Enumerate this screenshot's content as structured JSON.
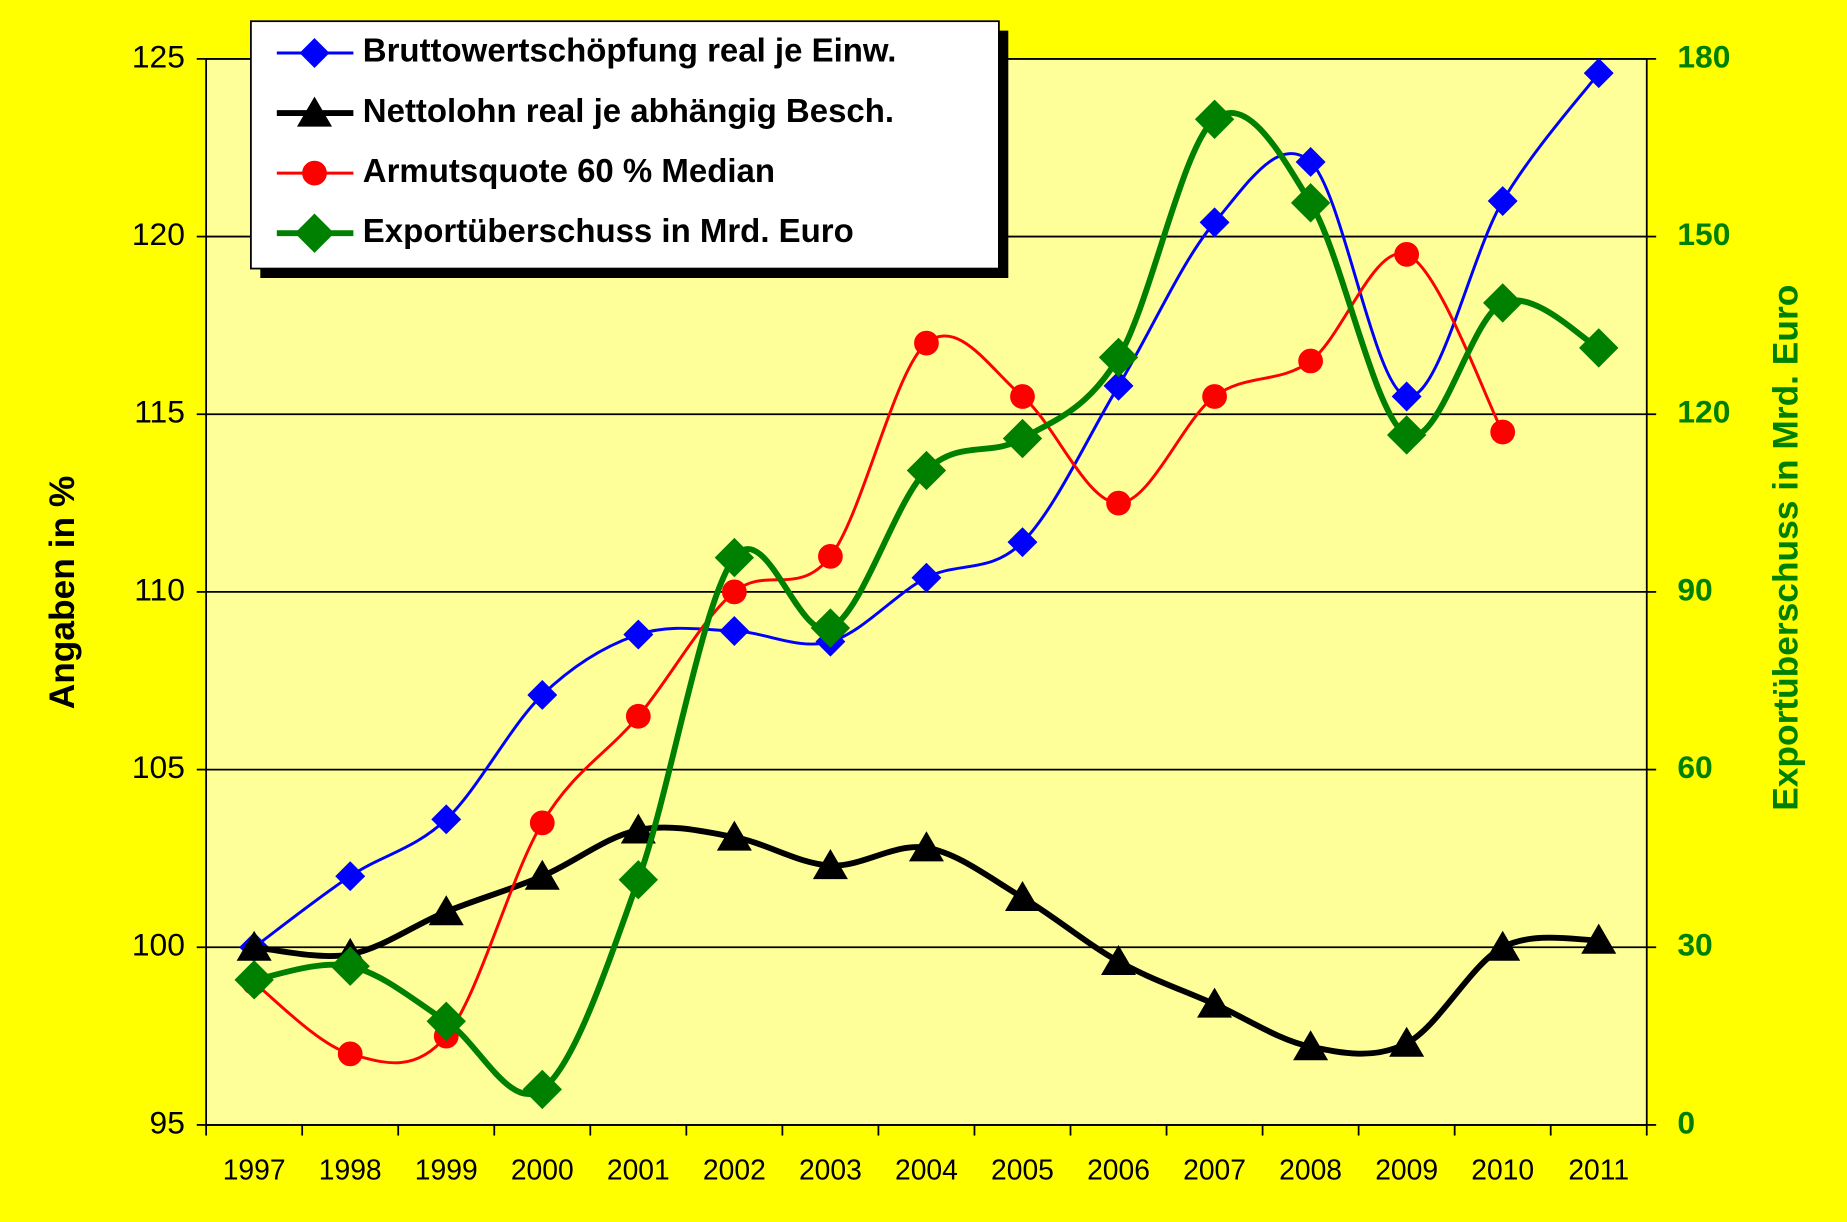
{
  "chart_data": {
    "type": "line",
    "y_axis_label": "Angaben in %",
    "y2_axis_label": "Exportüberschuss in Mrd. Euro",
    "categories": [
      "1997",
      "1998",
      "1999",
      "2000",
      "2001",
      "2002",
      "2003",
      "2004",
      "2005",
      "2006",
      "2007",
      "2008",
      "2009",
      "2010",
      "2011"
    ],
    "ylim": [
      95,
      125
    ],
    "yticks": [
      95,
      100,
      105,
      110,
      115,
      120,
      125
    ],
    "y2lim": [
      0,
      180
    ],
    "y2ticks": [
      0,
      30,
      60,
      90,
      120,
      150,
      180
    ],
    "grid": true,
    "legend": "top-left",
    "smooth": true,
    "series": [
      {
        "name": "Bruttowertschöpfung real je Einw.",
        "color": "#0000ff",
        "marker": "diamond",
        "values": [
          100,
          102,
          103.6,
          107.1,
          108.8,
          108.9,
          108.6,
          110.4,
          111.4,
          115.8,
          120.4,
          122.1,
          115.5,
          121,
          124.6
        ]
      },
      {
        "name": "Nettolohn real je abhängig Besch.",
        "color": "#000000",
        "marker": "triangle",
        "values": [
          100,
          99.8,
          101,
          102,
          103.3,
          103.1,
          102.3,
          102.8,
          101.4,
          99.6,
          98.4,
          97.2,
          97.3,
          100,
          100.2
        ]
      },
      {
        "name": "Armutsquote 60 % Median",
        "color": "#ff0000",
        "marker": "circle",
        "values": [
          99.0,
          97.0,
          97.5,
          103.5,
          106.5,
          110.0,
          111.0,
          117.0,
          115.5,
          112.5,
          115.5,
          116.5,
          119.5,
          114.5,
          null
        ]
      },
      {
        "name": "Exportüberschuss in Mrd. Euro",
        "color": "#008000",
        "marker": "bigdiamond",
        "axis": "y2",
        "values": [
          24.5,
          26.8,
          17.5,
          6,
          41.4,
          95.8,
          83.9,
          110.5,
          115.9,
          129.6,
          169.8,
          155.7,
          116.5,
          138.8,
          131.2
        ]
      }
    ]
  }
}
